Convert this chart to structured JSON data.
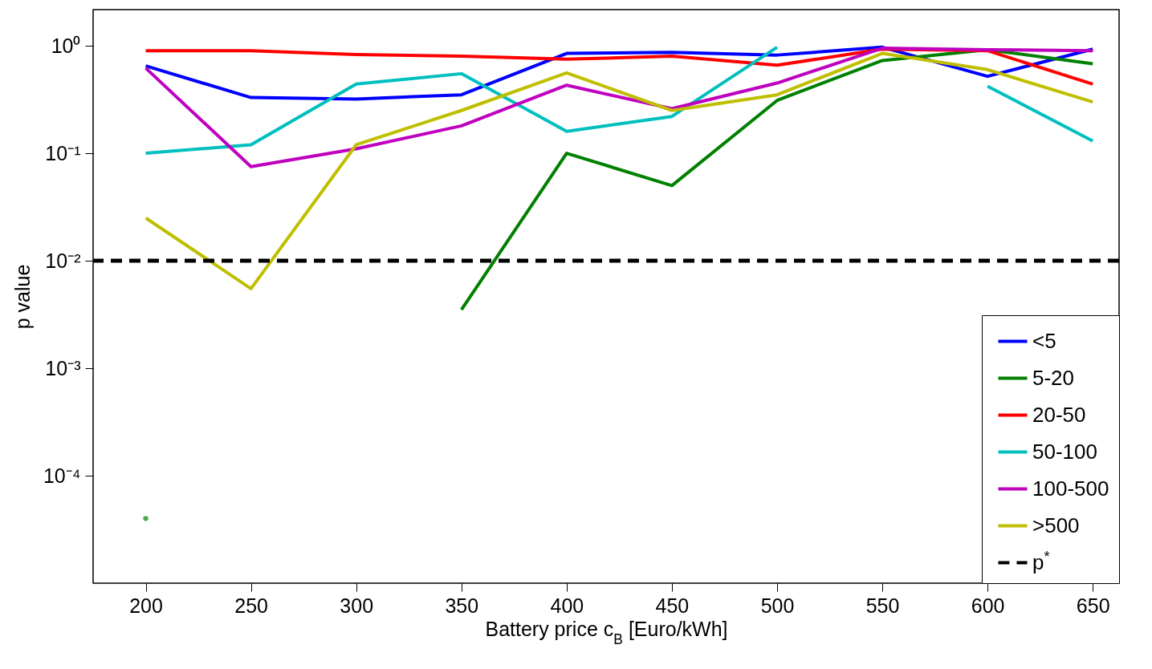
{
  "chart_data": {
    "type": "line",
    "xlabel": "Battery price c$_{B}$ [Euro/kWh]",
    "ylabel": "p value",
    "x": [
      200,
      250,
      300,
      350,
      400,
      450,
      500,
      550,
      600,
      650
    ],
    "series": [
      {
        "name": "<5",
        "color": "#0000ff",
        "values": [
          0.65,
          0.33,
          0.32,
          0.35,
          0.85,
          0.87,
          0.82,
          0.97,
          0.52,
          0.93
        ]
      },
      {
        "name": "5-20",
        "color": "#008000",
        "values": [
          4e-05,
          null,
          null,
          0.0035,
          0.1,
          0.05,
          0.31,
          0.73,
          0.92,
          0.68
        ]
      },
      {
        "name": "20-50",
        "color": "#ff0000",
        "values": [
          0.9,
          0.9,
          0.83,
          0.8,
          0.75,
          0.8,
          0.66,
          0.93,
          0.9,
          0.44
        ]
      },
      {
        "name": "50-100",
        "color": "#00bfbf",
        "values": [
          0.1,
          0.12,
          0.44,
          0.55,
          0.16,
          0.22,
          0.97,
          null,
          0.42,
          0.13
        ]
      },
      {
        "name": "100-500",
        "color": "#bf00bf",
        "values": [
          0.62,
          0.075,
          0.11,
          0.18,
          0.43,
          0.26,
          0.45,
          0.95,
          0.92,
          0.9
        ]
      },
      {
        "name": ">500",
        "color": "#bfbf00",
        "values": [
          0.025,
          0.0055,
          0.12,
          0.25,
          0.56,
          0.25,
          0.35,
          0.85,
          0.6,
          0.3
        ]
      }
    ],
    "ref_lines": [
      {
        "axis": "y",
        "value": 0.01,
        "label": "p$^{*}$",
        "color": "#000000",
        "line_style": "dashed"
      }
    ],
    "log": "y",
    "xlim": [
      175,
      662.5
    ],
    "xticks": [
      200,
      250,
      300,
      350,
      400,
      450,
      500,
      550,
      600,
      650
    ],
    "ylim": [
      1e-05,
      2.17
    ],
    "yticks": [
      {
        "value": 1,
        "label": "10⁰"
      },
      {
        "value": 0.1,
        "label": "10⁻¹"
      },
      {
        "value": 0.01,
        "label": "10⁻²"
      },
      {
        "value": 0.001,
        "label": "10⁻³"
      },
      {
        "value": 0.0001,
        "label": "10⁻⁴"
      }
    ],
    "grid": false,
    "legend": "bottom right",
    "line_style": "solid",
    "marker": "none"
  }
}
